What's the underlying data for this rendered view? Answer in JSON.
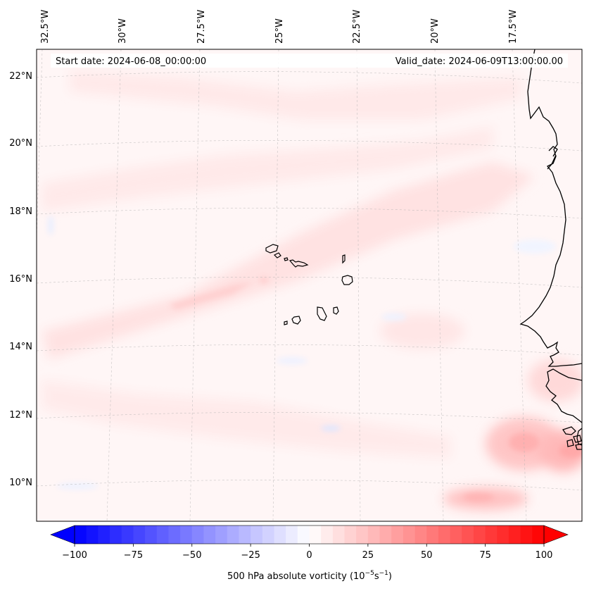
{
  "header": {
    "start_date": "Start date: 2024-06-08_00:00:00",
    "valid_date": "Valid_date: 2024-06-09T13:00:00.00"
  },
  "map": {
    "lon_labels": [
      "32.5°W",
      "30°W",
      "27.5°W",
      "25°W",
      "22.5°W",
      "20°W",
      "17.5°W"
    ],
    "lat_labels": [
      "22°N",
      "20°N",
      "18°N",
      "16°N",
      "14°N",
      "12°N",
      "10°N"
    ],
    "field": "500 hPa absolute vorticity",
    "colormap": "bwr",
    "gridlines": true,
    "coastline_color": "#000000"
  },
  "colorbar": {
    "label": "500 hPa absolute vorticity (10",
    "label_exp1": "−5",
    "label_mid": "s",
    "label_exp2": "−1",
    "label_end": ")",
    "ticks": [
      "−100",
      "−75",
      "−50",
      "−25",
      "0",
      "25",
      "50",
      "75",
      "100"
    ],
    "min": -100,
    "max": 100,
    "levels": 40,
    "extend": "both"
  }
}
